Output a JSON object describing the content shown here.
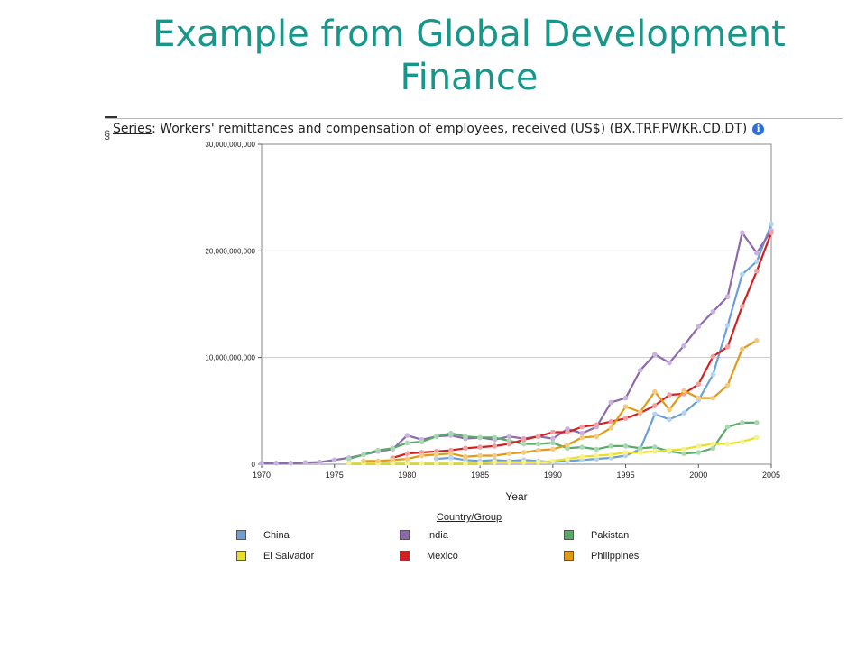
{
  "slide": {
    "title_line1": "Example from Global Development",
    "title_line2": "Finance"
  },
  "series_header": {
    "key": "Series",
    "text": ": Workers' remittances and compensation of employees, received (US$) (BX.TRF.PWKR.CD.DT)",
    "info_icon": "info-icon"
  },
  "legend": {
    "title": "Country/Group"
  },
  "chart_data": {
    "type": "line",
    "xlabel": "Year",
    "ylabel": "",
    "xlim": [
      1970,
      2005
    ],
    "ylim": [
      0,
      30000000000
    ],
    "x_ticks": [
      1970,
      1975,
      1980,
      1985,
      1990,
      1995,
      2000,
      2005
    ],
    "y_ticks": [
      0,
      10000000000,
      20000000000,
      30000000000
    ],
    "y_tick_labels": [
      "0",
      "10,000,000,000",
      "20,000,000,000",
      "30,000,000,000"
    ],
    "grid": "horizontal",
    "legend_position": "bottom",
    "series": [
      {
        "name": "China",
        "color": "#6a9fd8",
        "marker": "#b5d3f0",
        "points": [
          [
            1982,
            500000000
          ],
          [
            1983,
            600000000
          ],
          [
            1984,
            400000000
          ],
          [
            1985,
            300000000
          ],
          [
            1986,
            400000000
          ],
          [
            1987,
            300000000
          ],
          [
            1988,
            400000000
          ],
          [
            1989,
            300000000
          ],
          [
            1990,
            200000000
          ],
          [
            1991,
            300000000
          ],
          [
            1992,
            400000000
          ],
          [
            1993,
            500000000
          ],
          [
            1994,
            600000000
          ],
          [
            1995,
            800000000
          ],
          [
            1996,
            1400000000
          ],
          [
            1997,
            4700000000
          ],
          [
            1998,
            4200000000
          ],
          [
            1999,
            4800000000
          ],
          [
            2000,
            6000000000
          ],
          [
            2001,
            8400000000
          ],
          [
            2002,
            13000000000
          ],
          [
            2003,
            17800000000
          ],
          [
            2004,
            19000000000
          ],
          [
            2005,
            22500000000
          ]
        ]
      },
      {
        "name": "India",
        "color": "#8c6aac",
        "marker": "#c9b4e0",
        "points": [
          [
            1970,
            100000000
          ],
          [
            1971,
            100000000
          ],
          [
            1972,
            100000000
          ],
          [
            1973,
            150000000
          ],
          [
            1974,
            200000000
          ],
          [
            1975,
            400000000
          ],
          [
            1976,
            600000000
          ],
          [
            1977,
            900000000
          ],
          [
            1978,
            1200000000
          ],
          [
            1979,
            1400000000
          ],
          [
            1980,
            2700000000
          ],
          [
            1981,
            2300000000
          ],
          [
            1982,
            2600000000
          ],
          [
            1983,
            2700000000
          ],
          [
            1984,
            2400000000
          ],
          [
            1985,
            2500000000
          ],
          [
            1986,
            2300000000
          ],
          [
            1987,
            2600000000
          ],
          [
            1988,
            2400000000
          ],
          [
            1989,
            2600000000
          ],
          [
            1990,
            2400000000
          ],
          [
            1991,
            3300000000
          ],
          [
            1992,
            2900000000
          ],
          [
            1993,
            3500000000
          ],
          [
            1994,
            5800000000
          ],
          [
            1995,
            6200000000
          ],
          [
            1996,
            8800000000
          ],
          [
            1997,
            10300000000
          ],
          [
            1998,
            9500000000
          ],
          [
            1999,
            11100000000
          ],
          [
            2000,
            12900000000
          ],
          [
            2001,
            14300000000
          ],
          [
            2002,
            15700000000
          ],
          [
            2003,
            21700000000
          ],
          [
            2004,
            19800000000
          ],
          [
            2005,
            21900000000
          ]
        ]
      },
      {
        "name": "Pakistan",
        "color": "#5aaa6a",
        "marker": "#a9d9b0",
        "points": [
          [
            1976,
            500000000
          ],
          [
            1977,
            900000000
          ],
          [
            1978,
            1300000000
          ],
          [
            1979,
            1500000000
          ],
          [
            1980,
            2000000000
          ],
          [
            1981,
            2100000000
          ],
          [
            1982,
            2600000000
          ],
          [
            1983,
            2900000000
          ],
          [
            1984,
            2600000000
          ],
          [
            1985,
            2500000000
          ],
          [
            1986,
            2500000000
          ],
          [
            1987,
            2200000000
          ],
          [
            1988,
            1900000000
          ],
          [
            1989,
            1900000000
          ],
          [
            1990,
            2000000000
          ],
          [
            1991,
            1500000000
          ],
          [
            1992,
            1600000000
          ],
          [
            1993,
            1400000000
          ],
          [
            1994,
            1700000000
          ],
          [
            1995,
            1700000000
          ],
          [
            1996,
            1500000000
          ],
          [
            1997,
            1600000000
          ],
          [
            1998,
            1200000000
          ],
          [
            1999,
            1000000000
          ],
          [
            2000,
            1100000000
          ],
          [
            2001,
            1500000000
          ],
          [
            2002,
            3500000000
          ],
          [
            2003,
            3900000000
          ],
          [
            2004,
            3900000000
          ]
        ]
      },
      {
        "name": "El Salvador",
        "color": "#e8e020",
        "marker": "#f6f290",
        "points": [
          [
            1976,
            100000000
          ],
          [
            1977,
            100000000
          ],
          [
            1978,
            100000000
          ],
          [
            1979,
            100000000
          ],
          [
            1980,
            100000000
          ],
          [
            1981,
            100000000
          ],
          [
            1982,
            100000000
          ],
          [
            1983,
            100000000
          ],
          [
            1984,
            100000000
          ],
          [
            1985,
            100000000
          ],
          [
            1986,
            200000000
          ],
          [
            1987,
            200000000
          ],
          [
            1988,
            200000000
          ],
          [
            1989,
            200000000
          ],
          [
            1990,
            300000000
          ],
          [
            1991,
            500000000
          ],
          [
            1992,
            700000000
          ],
          [
            1993,
            800000000
          ],
          [
            1994,
            900000000
          ],
          [
            1995,
            1100000000
          ],
          [
            1996,
            1100000000
          ],
          [
            1997,
            1200000000
          ],
          [
            1998,
            1300000000
          ],
          [
            1999,
            1400000000
          ],
          [
            2000,
            1700000000
          ],
          [
            2001,
            1900000000
          ],
          [
            2002,
            1900000000
          ],
          [
            2003,
            2100000000
          ],
          [
            2004,
            2500000000
          ]
        ]
      },
      {
        "name": "Mexico",
        "color": "#d42020",
        "marker": "#f0a0a0",
        "points": [
          [
            1979,
            600000000
          ],
          [
            1980,
            1000000000
          ],
          [
            1981,
            1100000000
          ],
          [
            1982,
            1200000000
          ],
          [
            1983,
            1300000000
          ],
          [
            1984,
            1500000000
          ],
          [
            1985,
            1600000000
          ],
          [
            1986,
            1700000000
          ],
          [
            1987,
            1900000000
          ],
          [
            1988,
            2300000000
          ],
          [
            1989,
            2600000000
          ],
          [
            1990,
            3000000000
          ],
          [
            1991,
            3000000000
          ],
          [
            1992,
            3500000000
          ],
          [
            1993,
            3700000000
          ],
          [
            1994,
            4000000000
          ],
          [
            1995,
            4300000000
          ],
          [
            1996,
            4800000000
          ],
          [
            1997,
            5500000000
          ],
          [
            1998,
            6500000000
          ],
          [
            1999,
            6600000000
          ],
          [
            2000,
            7500000000
          ],
          [
            2001,
            10100000000
          ],
          [
            2002,
            11000000000
          ],
          [
            2003,
            14800000000
          ],
          [
            2004,
            18100000000
          ],
          [
            2005,
            21700000000
          ]
        ]
      },
      {
        "name": "Philippines",
        "color": "#e09a18",
        "marker": "#f3cc80",
        "points": [
          [
            1977,
            300000000
          ],
          [
            1978,
            300000000
          ],
          [
            1979,
            400000000
          ],
          [
            1980,
            500000000
          ],
          [
            1981,
            800000000
          ],
          [
            1982,
            900000000
          ],
          [
            1983,
            1000000000
          ],
          [
            1984,
            700000000
          ],
          [
            1985,
            800000000
          ],
          [
            1986,
            800000000
          ],
          [
            1987,
            1000000000
          ],
          [
            1988,
            1100000000
          ],
          [
            1989,
            1300000000
          ],
          [
            1990,
            1400000000
          ],
          [
            1991,
            1800000000
          ],
          [
            1992,
            2500000000
          ],
          [
            1993,
            2600000000
          ],
          [
            1994,
            3400000000
          ],
          [
            1995,
            5400000000
          ],
          [
            1996,
            4900000000
          ],
          [
            1997,
            6800000000
          ],
          [
            1998,
            5100000000
          ],
          [
            1999,
            6900000000
          ],
          [
            2000,
            6200000000
          ],
          [
            2001,
            6200000000
          ],
          [
            2002,
            7400000000
          ],
          [
            2003,
            10800000000
          ],
          [
            2004,
            11600000000
          ]
        ]
      }
    ]
  }
}
